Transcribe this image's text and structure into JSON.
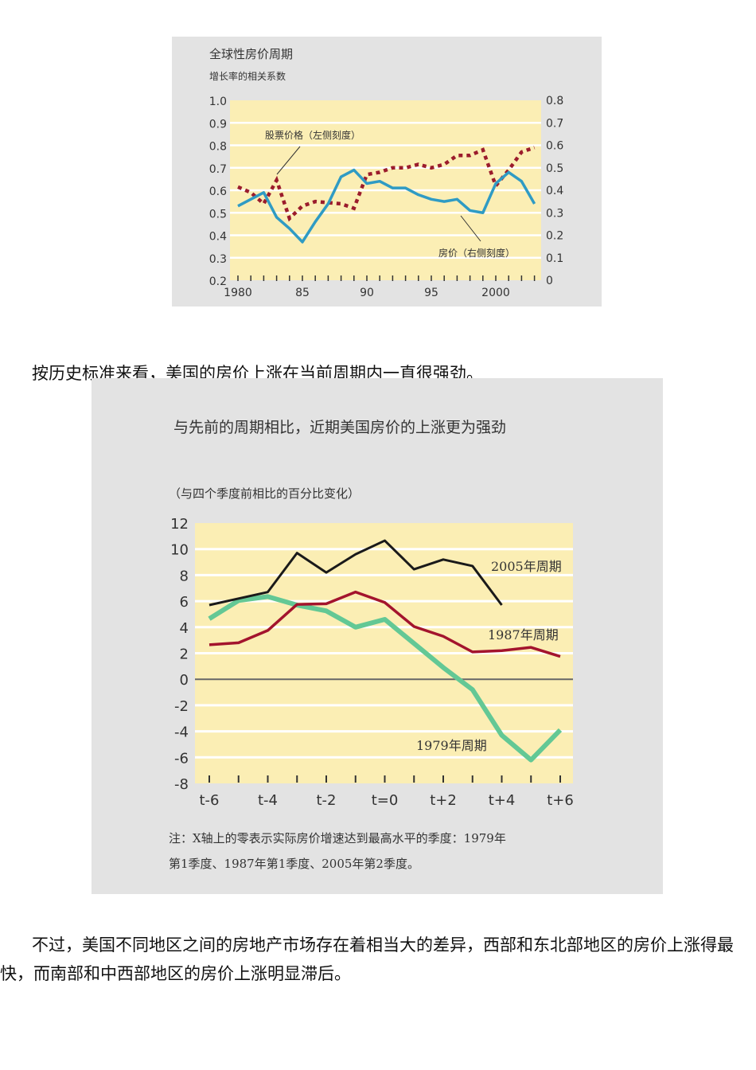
{
  "paragraphs": {
    "p1": "按历史标准来看，美国的房价上涨在当前周期内一直很强劲。",
    "p2": "不过，美国不同地区之间的房地产市场存在着相当大的差异，西部和东北部地区的房价上涨得最快，而南部和中西部地区的房价上涨明显滞后。"
  },
  "colors": {
    "figure_bg": "#e3e3e3",
    "plot_bg": "#fbeeb4",
    "grid": "#ffffff",
    "house_line": "#2f9bc4",
    "stock_line": "#9b1c2c",
    "c2005": "#1a1a1a",
    "c1987": "#a3142d",
    "c1979": "#63c895",
    "zero_line": "#666666"
  },
  "chart_data": [
    {
      "type": "line",
      "title": "全球性房价周期",
      "subtitle": "增长率的相关系数",
      "xlabel": "",
      "x": [
        1980,
        1981,
        1982,
        1983,
        1984,
        1985,
        1986,
        1987,
        1988,
        1989,
        1990,
        1991,
        1992,
        1993,
        1994,
        1995,
        1996,
        1997,
        1998,
        1999,
        2000,
        2001,
        2002,
        2003
      ],
      "x_tick_labels": [
        "1980",
        "85",
        "90",
        "95",
        "2000"
      ],
      "y_left_ticks": [
        "1.0",
        "0.9",
        "0.8",
        "0.7",
        "0.6",
        "0.5",
        "0.4",
        "0.3",
        "0.2"
      ],
      "y_right_ticks": [
        "0.8",
        "0.7",
        "0.6",
        "0.5",
        "0.4",
        "0.3",
        "0.2",
        "0.1",
        "0"
      ],
      "ylim_left": [
        0.2,
        1.0
      ],
      "ylim_right": [
        0,
        0.8
      ],
      "grid": true,
      "series": [
        {
          "name": "股票价格（左侧刻度）",
          "axis": "left",
          "style": "dotted",
          "values": [
            0.615,
            0.59,
            0.54,
            0.645,
            0.475,
            0.53,
            0.55,
            0.545,
            0.54,
            0.52,
            0.67,
            0.68,
            0.7,
            0.7,
            0.715,
            0.7,
            0.715,
            0.755,
            0.755,
            0.78,
            0.62,
            0.69,
            0.77,
            0.79
          ]
        },
        {
          "name": "房价（右侧刻度）",
          "axis": "right",
          "style": "solid",
          "values": [
            0.33,
            0.36,
            0.39,
            0.28,
            0.23,
            0.17,
            0.26,
            0.34,
            0.46,
            0.49,
            0.43,
            0.44,
            0.41,
            0.41,
            0.38,
            0.36,
            0.35,
            0.36,
            0.31,
            0.3,
            0.43,
            0.48,
            0.44,
            0.34
          ]
        }
      ],
      "annotations": [
        "股票价格（左侧刻度）",
        "房价（右侧刻度）"
      ]
    },
    {
      "type": "line",
      "title": "与先前的周期相比，近期美国房价的上涨更为强劲",
      "subtitle": "（与四个季度前相比的百分比变化）",
      "xlabel": "",
      "ylabel": "",
      "categories": [
        "t-6",
        "t-5",
        "t-4",
        "t-3",
        "t-2",
        "t-1",
        "t=0",
        "t+1",
        "t+2",
        "t+3",
        "t+4",
        "t+5",
        "t+6"
      ],
      "x_tick_labels": [
        "t-6",
        "t-4",
        "t-2",
        "t=0",
        "t+2",
        "t+4",
        "t+6"
      ],
      "y_ticks": [
        "12",
        "10",
        "8",
        "6",
        "4",
        "2",
        "0",
        "-2",
        "-4",
        "-6",
        "-8"
      ],
      "ylim": [
        -8,
        12
      ],
      "grid": true,
      "series": [
        {
          "name": "2005年周期",
          "values": [
            5.7,
            6.2,
            6.7,
            9.7,
            8.2,
            9.6,
            10.65,
            8.45,
            9.2,
            8.7,
            5.7,
            null,
            null
          ]
        },
        {
          "name": "1987年周期",
          "values": [
            2.65,
            2.8,
            3.75,
            5.75,
            5.8,
            6.7,
            5.9,
            4.05,
            3.3,
            2.1,
            2.2,
            2.45,
            1.75
          ]
        },
        {
          "name": "1979年周期",
          "values": [
            4.65,
            6.05,
            6.35,
            5.7,
            5.25,
            4.0,
            4.6,
            2.75,
            0.9,
            -0.8,
            -4.3,
            -6.2,
            -3.9
          ]
        }
      ],
      "note": [
        "注：X轴上的零表示实际房价增速达到最高水平的季度：1979年",
        "第1季度、1987年第1季度、2005年第2季度。"
      ]
    }
  ]
}
